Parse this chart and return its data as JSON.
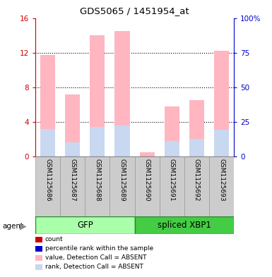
{
  "title": "GDS5065 / 1451954_at",
  "samples": [
    "GSM1125686",
    "GSM1125687",
    "GSM1125688",
    "GSM1125689",
    "GSM1125690",
    "GSM1125691",
    "GSM1125692",
    "GSM1125693"
  ],
  "absent_value_heights": [
    11.7,
    7.2,
    14.0,
    14.5,
    0.5,
    5.8,
    6.5,
    12.2
  ],
  "absent_rank_heights": [
    20.0,
    10.0,
    21.3,
    22.5,
    0.0,
    11.3,
    12.5,
    19.4
  ],
  "bar_width": 0.6,
  "ylim_left": [
    0,
    16
  ],
  "ylim_right": [
    0,
    100
  ],
  "yticks_left": [
    0,
    4,
    8,
    12,
    16
  ],
  "yticks_right": [
    0,
    25,
    50,
    75,
    100
  ],
  "ytick_labels_left": [
    "0",
    "4",
    "8",
    "12",
    "16"
  ],
  "ytick_labels_right": [
    "0",
    "25",
    "50",
    "75",
    "100%"
  ],
  "left_color": "#CC0000",
  "right_color": "#0000CC",
  "absent_value_color": "#FFB6C1",
  "absent_rank_color": "#C8D8F0",
  "legend_items": [
    {
      "color": "#CC0000",
      "label": "count"
    },
    {
      "color": "#0000CC",
      "label": "percentile rank within the sample"
    },
    {
      "color": "#FFB6C1",
      "label": "value, Detection Call = ABSENT"
    },
    {
      "color": "#C8D8F0",
      "label": "rank, Detection Call = ABSENT"
    }
  ],
  "agent_label": "agent",
  "gfp_label": "GFP",
  "xbp1_label": "spliced XBP1",
  "gfp_color": "#AAFFAA",
  "xbp1_color": "#44CC44",
  "sample_box_color": "#CCCCCC",
  "grid_dotted_at": [
    4,
    8,
    12
  ]
}
